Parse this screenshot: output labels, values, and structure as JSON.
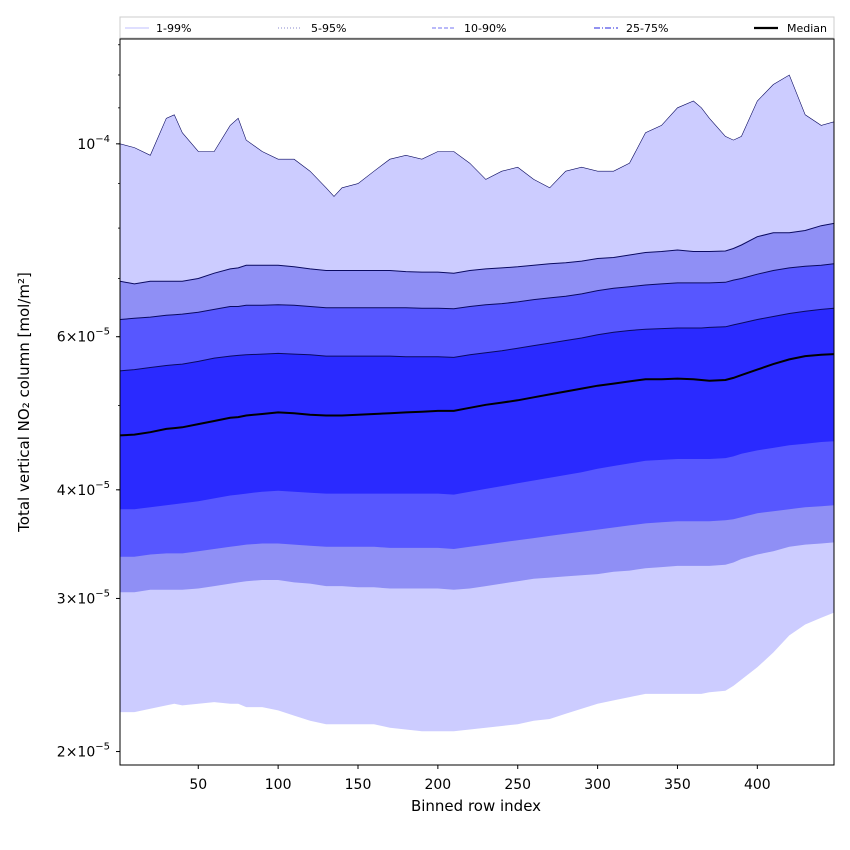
{
  "chart_data": {
    "type": "area",
    "title": "",
    "xlabel": "Binned row index",
    "ylabel": "Total vertical NO₂ column [mol/m²]",
    "x_range": [
      1,
      448
    ],
    "y_range": [
      1.93e-05,
      0.000132
    ],
    "y_scale": "log",
    "x_ticks": [
      50,
      100,
      150,
      200,
      250,
      300,
      350,
      400
    ],
    "y_ticks": [
      {
        "value": 2e-05,
        "mantissa": "2",
        "exponent": "−5"
      },
      {
        "value": 3e-05,
        "mantissa": "3",
        "exponent": "−5"
      },
      {
        "value": 4e-05,
        "mantissa": "4",
        "exponent": "−5"
      },
      {
        "value": 6e-05,
        "mantissa": "6",
        "exponent": "−5"
      },
      {
        "value": 0.0001,
        "mantissa": "10",
        "exponent": "−4"
      }
    ],
    "grid": false,
    "legend_position": "top",
    "legend": [
      {
        "label": "1-99%",
        "color": "#ccccff",
        "style": "solid"
      },
      {
        "label": "5-95%",
        "color": "#a0a0d8",
        "style": "dotted"
      },
      {
        "label": "10-90%",
        "color": "#8f8ff5",
        "style": "dashed"
      },
      {
        "label": "25-75%",
        "color": "#5050e8",
        "style": "dashdot"
      },
      {
        "label": "Median",
        "color": "#000000",
        "style": "solid"
      }
    ],
    "x": [
      1,
      10,
      20,
      30,
      35,
      40,
      50,
      60,
      70,
      75,
      80,
      90,
      100,
      110,
      120,
      130,
      135,
      140,
      150,
      160,
      170,
      180,
      190,
      200,
      210,
      220,
      230,
      240,
      250,
      260,
      270,
      280,
      290,
      300,
      310,
      320,
      330,
      340,
      350,
      360,
      365,
      370,
      380,
      385,
      390,
      400,
      410,
      420,
      430,
      440,
      448
    ],
    "series": [
      {
        "name": "1-99%",
        "color": "#ccccff",
        "upper": [
          0.0001,
          9.9e-05,
          9.7e-05,
          0.000107,
          0.000108,
          0.000103,
          9.8e-05,
          9.8e-05,
          0.000105,
          0.000107,
          0.000101,
          9.8e-05,
          9.6e-05,
          9.6e-05,
          9.3e-05,
          8.9e-05,
          8.7e-05,
          8.9e-05,
          9e-05,
          9.3e-05,
          9.6e-05,
          9.7e-05,
          9.6e-05,
          9.8e-05,
          9.8e-05,
          9.5e-05,
          9.1e-05,
          9.3e-05,
          9.4e-05,
          9.1e-05,
          8.9e-05,
          9.3e-05,
          9.4e-05,
          9.3e-05,
          9.3e-05,
          9.5e-05,
          0.000103,
          0.000105,
          0.00011,
          0.000112,
          0.00011,
          0.000107,
          0.000102,
          0.000101,
          0.000102,
          0.000112,
          0.000117,
          0.00012,
          0.000108,
          0.000105,
          0.000106
        ],
        "lower": [
          2.22e-05,
          2.22e-05,
          2.24e-05,
          2.26e-05,
          2.27e-05,
          2.26e-05,
          2.27e-05,
          2.28e-05,
          2.27e-05,
          2.27e-05,
          2.25e-05,
          2.25e-05,
          2.23e-05,
          2.2e-05,
          2.17e-05,
          2.15e-05,
          2.15e-05,
          2.15e-05,
          2.15e-05,
          2.15e-05,
          2.13e-05,
          2.12e-05,
          2.11e-05,
          2.11e-05,
          2.11e-05,
          2.12e-05,
          2.13e-05,
          2.14e-05,
          2.15e-05,
          2.17e-05,
          2.18e-05,
          2.21e-05,
          2.24e-05,
          2.27e-05,
          2.29e-05,
          2.31e-05,
          2.33e-05,
          2.33e-05,
          2.33e-05,
          2.33e-05,
          2.33e-05,
          2.34e-05,
          2.35e-05,
          2.38e-05,
          2.42e-05,
          2.5e-05,
          2.6e-05,
          2.72e-05,
          2.8e-05,
          2.85e-05,
          2.89e-05
        ]
      },
      {
        "name": "5-95%",
        "color": "#8f8ff5",
        "upper": [
          6.95e-05,
          6.9e-05,
          6.95e-05,
          6.95e-05,
          6.95e-05,
          6.95e-05,
          7e-05,
          7.1e-05,
          7.18e-05,
          7.2e-05,
          7.25e-05,
          7.25e-05,
          7.25e-05,
          7.22e-05,
          7.18e-05,
          7.15e-05,
          7.15e-05,
          7.15e-05,
          7.15e-05,
          7.15e-05,
          7.15e-05,
          7.13e-05,
          7.12e-05,
          7.12e-05,
          7.1e-05,
          7.15e-05,
          7.18e-05,
          7.2e-05,
          7.22e-05,
          7.25e-05,
          7.28e-05,
          7.3e-05,
          7.33e-05,
          7.38e-05,
          7.4e-05,
          7.45e-05,
          7.5e-05,
          7.52e-05,
          7.55e-05,
          7.52e-05,
          7.52e-05,
          7.52e-05,
          7.53e-05,
          7.58e-05,
          7.65e-05,
          7.82e-05,
          7.9e-05,
          7.9e-05,
          7.95e-05,
          8.05e-05,
          8.1e-05
        ],
        "lower": [
          3.05e-05,
          3.05e-05,
          3.07e-05,
          3.07e-05,
          3.07e-05,
          3.07e-05,
          3.08e-05,
          3.1e-05,
          3.12e-05,
          3.13e-05,
          3.14e-05,
          3.15e-05,
          3.15e-05,
          3.13e-05,
          3.12e-05,
          3.1e-05,
          3.1e-05,
          3.1e-05,
          3.09e-05,
          3.09e-05,
          3.08e-05,
          3.08e-05,
          3.08e-05,
          3.08e-05,
          3.07e-05,
          3.08e-05,
          3.1e-05,
          3.12e-05,
          3.14e-05,
          3.16e-05,
          3.17e-05,
          3.18e-05,
          3.19e-05,
          3.2e-05,
          3.22e-05,
          3.23e-05,
          3.25e-05,
          3.26e-05,
          3.27e-05,
          3.27e-05,
          3.27e-05,
          3.27e-05,
          3.28e-05,
          3.3e-05,
          3.33e-05,
          3.37e-05,
          3.4e-05,
          3.44e-05,
          3.46e-05,
          3.47e-05,
          3.48e-05
        ]
      },
      {
        "name": "10-90%",
        "color": "#5757ff",
        "upper": [
          6.28e-05,
          6.3e-05,
          6.32e-05,
          6.35e-05,
          6.36e-05,
          6.37e-05,
          6.4e-05,
          6.45e-05,
          6.5e-05,
          6.5e-05,
          6.52e-05,
          6.52e-05,
          6.53e-05,
          6.52e-05,
          6.5e-05,
          6.48e-05,
          6.48e-05,
          6.48e-05,
          6.48e-05,
          6.48e-05,
          6.48e-05,
          6.48e-05,
          6.47e-05,
          6.47e-05,
          6.46e-05,
          6.5e-05,
          6.53e-05,
          6.55e-05,
          6.58e-05,
          6.62e-05,
          6.65e-05,
          6.68e-05,
          6.72e-05,
          6.78e-05,
          6.82e-05,
          6.85e-05,
          6.88e-05,
          6.9e-05,
          6.92e-05,
          6.92e-05,
          6.92e-05,
          6.92e-05,
          6.93e-05,
          6.97e-05,
          7e-05,
          7.08e-05,
          7.15e-05,
          7.2e-05,
          7.23e-05,
          7.25e-05,
          7.28e-05
        ],
        "lower": [
          3.35e-05,
          3.35e-05,
          3.37e-05,
          3.38e-05,
          3.38e-05,
          3.38e-05,
          3.4e-05,
          3.42e-05,
          3.44e-05,
          3.45e-05,
          3.46e-05,
          3.47e-05,
          3.47e-05,
          3.46e-05,
          3.45e-05,
          3.44e-05,
          3.44e-05,
          3.44e-05,
          3.44e-05,
          3.44e-05,
          3.43e-05,
          3.43e-05,
          3.43e-05,
          3.43e-05,
          3.42e-05,
          3.44e-05,
          3.46e-05,
          3.48e-05,
          3.5e-05,
          3.52e-05,
          3.54e-05,
          3.56e-05,
          3.58e-05,
          3.6e-05,
          3.62e-05,
          3.64e-05,
          3.66e-05,
          3.67e-05,
          3.68e-05,
          3.68e-05,
          3.68e-05,
          3.68e-05,
          3.69e-05,
          3.7e-05,
          3.72e-05,
          3.76e-05,
          3.78e-05,
          3.8e-05,
          3.82e-05,
          3.83e-05,
          3.84e-05
        ]
      },
      {
        "name": "25-75%",
        "color": "#2a2aff",
        "upper": [
          5.48e-05,
          5.5e-05,
          5.53e-05,
          5.56e-05,
          5.57e-05,
          5.58e-05,
          5.62e-05,
          5.67e-05,
          5.7e-05,
          5.71e-05,
          5.72e-05,
          5.73e-05,
          5.74e-05,
          5.73e-05,
          5.72e-05,
          5.7e-05,
          5.7e-05,
          5.7e-05,
          5.7e-05,
          5.7e-05,
          5.7e-05,
          5.69e-05,
          5.69e-05,
          5.69e-05,
          5.68e-05,
          5.72e-05,
          5.75e-05,
          5.78e-05,
          5.82e-05,
          5.86e-05,
          5.9e-05,
          5.94e-05,
          5.98e-05,
          6.03e-05,
          6.07e-05,
          6.1e-05,
          6.12e-05,
          6.13e-05,
          6.14e-05,
          6.14e-05,
          6.14e-05,
          6.15e-05,
          6.16e-05,
          6.19e-05,
          6.22e-05,
          6.28e-05,
          6.33e-05,
          6.38e-05,
          6.42e-05,
          6.45e-05,
          6.47e-05
        ],
        "lower": [
          3.8e-05,
          3.8e-05,
          3.82e-05,
          3.84e-05,
          3.85e-05,
          3.86e-05,
          3.88e-05,
          3.91e-05,
          3.94e-05,
          3.95e-05,
          3.96e-05,
          3.98e-05,
          3.99e-05,
          3.98e-05,
          3.97e-05,
          3.96e-05,
          3.96e-05,
          3.96e-05,
          3.96e-05,
          3.96e-05,
          3.96e-05,
          3.96e-05,
          3.96e-05,
          3.96e-05,
          3.95e-05,
          3.98e-05,
          4.01e-05,
          4.04e-05,
          4.07e-05,
          4.1e-05,
          4.13e-05,
          4.16e-05,
          4.19e-05,
          4.23e-05,
          4.26e-05,
          4.29e-05,
          4.32e-05,
          4.33e-05,
          4.34e-05,
          4.34e-05,
          4.34e-05,
          4.34e-05,
          4.35e-05,
          4.37e-05,
          4.4e-05,
          4.44e-05,
          4.47e-05,
          4.5e-05,
          4.52e-05,
          4.54e-05,
          4.55e-05
        ]
      }
    ],
    "median": [
      4.62e-05,
      4.63e-05,
      4.66e-05,
      4.7e-05,
      4.71e-05,
      4.72e-05,
      4.76e-05,
      4.8e-05,
      4.84e-05,
      4.85e-05,
      4.87e-05,
      4.89e-05,
      4.91e-05,
      4.9e-05,
      4.88e-05,
      4.87e-05,
      4.87e-05,
      4.87e-05,
      4.88e-05,
      4.89e-05,
      4.9e-05,
      4.91e-05,
      4.92e-05,
      4.93e-05,
      4.93e-05,
      4.97e-05,
      5.01e-05,
      5.04e-05,
      5.07e-05,
      5.11e-05,
      5.15e-05,
      5.19e-05,
      5.23e-05,
      5.27e-05,
      5.3e-05,
      5.33e-05,
      5.36e-05,
      5.36e-05,
      5.37e-05,
      5.36e-05,
      5.35e-05,
      5.34e-05,
      5.35e-05,
      5.38e-05,
      5.42e-05,
      5.5e-05,
      5.58e-05,
      5.65e-05,
      5.7e-05,
      5.72e-05,
      5.73e-05
    ]
  }
}
